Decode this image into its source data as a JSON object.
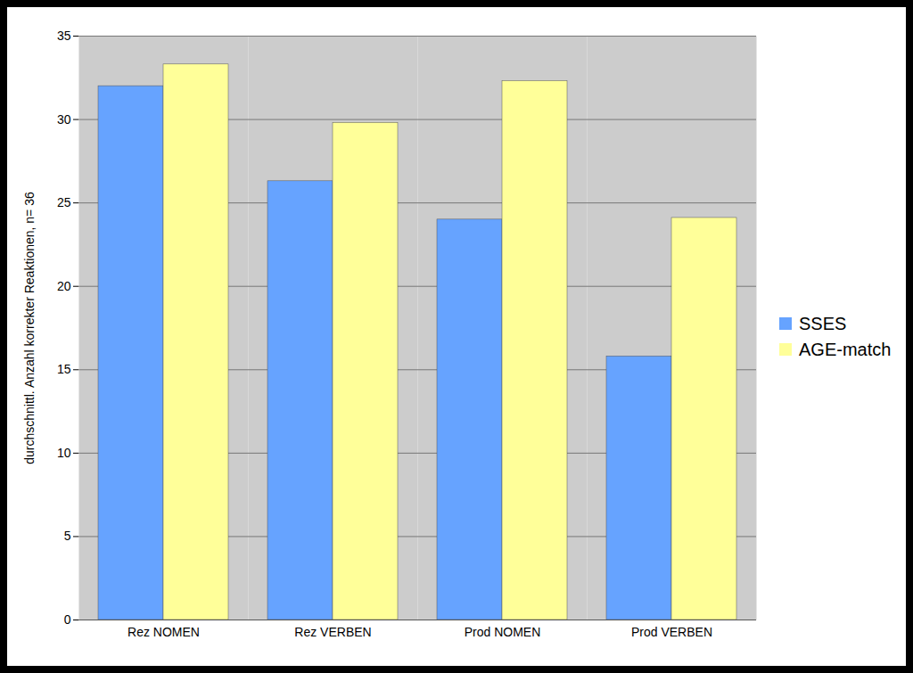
{
  "chart_data": {
    "type": "bar",
    "categories": [
      "Rez NOMEN",
      "Rez VERBEN",
      "Prod NOMEN",
      "Prod VERBEN"
    ],
    "series": [
      {
        "name": "SSES",
        "color": "#66a3ff",
        "values": [
          32,
          26.3,
          24,
          15.8
        ]
      },
      {
        "name": "AGE-match",
        "color": "#ffff99",
        "values": [
          33.3,
          29.8,
          32.3,
          24.1
        ]
      }
    ],
    "y_label": "durchschnittl. Anzahl korrekter Reaktionen, n= 36",
    "ylim": [
      0,
      35
    ],
    "yticks": [
      0,
      5,
      10,
      15,
      20,
      25,
      30,
      35
    ],
    "grid": true,
    "legend": "right"
  }
}
